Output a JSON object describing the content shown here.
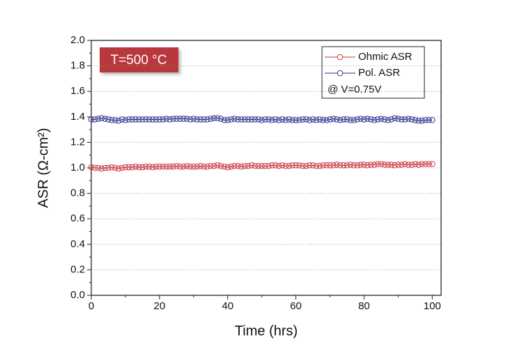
{
  "chart_data": {
    "type": "line",
    "xlabel": "Time (hrs)",
    "ylabel": "ASR (Ω-cm²)",
    "annotation": "T=500 °C",
    "legend_note": "@ V=0.75V",
    "legend": "upper right",
    "grid": true,
    "xlim": [
      0,
      102.6
    ],
    "xticks": [
      0,
      20,
      40,
      60,
      80,
      100
    ],
    "ylim": [
      0,
      2
    ],
    "yticks": [
      {
        "value": 0,
        "label": "0.0"
      },
      0.2,
      0.4,
      0.6,
      0.8,
      {
        "value": 1,
        "label": "1.0"
      },
      1.2,
      1.4,
      1.6,
      1.8,
      {
        "value": 2,
        "label": "2.0"
      }
    ],
    "x": [
      0,
      1,
      2,
      3,
      4,
      5,
      6,
      7,
      8,
      9,
      10,
      11,
      12,
      13,
      14,
      15,
      16,
      17,
      18,
      19,
      20,
      21,
      22,
      23,
      24,
      25,
      26,
      27,
      28,
      29,
      30,
      31,
      32,
      33,
      34,
      35,
      36,
      37,
      38,
      39,
      40,
      41,
      42,
      43,
      44,
      45,
      46,
      47,
      48,
      49,
      50,
      51,
      52,
      53,
      54,
      55,
      56,
      57,
      58,
      59,
      60,
      61,
      62,
      63,
      64,
      65,
      66,
      67,
      68,
      69,
      70,
      71,
      72,
      73,
      74,
      75,
      76,
      77,
      78,
      79,
      80,
      81,
      82,
      83,
      84,
      85,
      86,
      87,
      88,
      89,
      90,
      91,
      92,
      93,
      94,
      95,
      96,
      97,
      98,
      99,
      100
    ],
    "series": [
      {
        "name": "Ohmic ASR",
        "color": "#c8323c",
        "values": [
          1.005,
          1.0,
          1.0,
          0.995,
          1.0,
          1.0,
          1.005,
          1.0,
          0.995,
          1.0,
          1.005,
          1.005,
          1.005,
          1.01,
          1.005,
          1.005,
          1.01,
          1.01,
          1.005,
          1.01,
          1.01,
          1.01,
          1.01,
          1.01,
          1.01,
          1.015,
          1.01,
          1.01,
          1.015,
          1.01,
          1.01,
          1.01,
          1.015,
          1.01,
          1.01,
          1.015,
          1.015,
          1.02,
          1.015,
          1.01,
          1.005,
          1.01,
          1.015,
          1.015,
          1.01,
          1.015,
          1.015,
          1.02,
          1.015,
          1.015,
          1.015,
          1.015,
          1.015,
          1.02,
          1.02,
          1.015,
          1.02,
          1.015,
          1.015,
          1.02,
          1.02,
          1.02,
          1.015,
          1.015,
          1.02,
          1.02,
          1.015,
          1.015,
          1.02,
          1.02,
          1.02,
          1.02,
          1.025,
          1.02,
          1.02,
          1.02,
          1.025,
          1.02,
          1.02,
          1.025,
          1.025,
          1.02,
          1.025,
          1.025,
          1.03,
          1.03,
          1.025,
          1.025,
          1.025,
          1.02,
          1.025,
          1.025,
          1.03,
          1.025,
          1.025,
          1.03,
          1.025,
          1.03,
          1.03,
          1.03,
          1.03
        ]
      },
      {
        "name": "Pol. ASR",
        "color": "#2e2e8c",
        "values": [
          1.38,
          1.38,
          1.385,
          1.39,
          1.385,
          1.38,
          1.375,
          1.375,
          1.37,
          1.38,
          1.375,
          1.38,
          1.38,
          1.38,
          1.38,
          1.38,
          1.38,
          1.38,
          1.38,
          1.38,
          1.38,
          1.38,
          1.385,
          1.38,
          1.385,
          1.385,
          1.385,
          1.385,
          1.385,
          1.38,
          1.385,
          1.38,
          1.38,
          1.38,
          1.38,
          1.385,
          1.39,
          1.39,
          1.385,
          1.375,
          1.375,
          1.38,
          1.385,
          1.38,
          1.38,
          1.38,
          1.38,
          1.38,
          1.38,
          1.38,
          1.375,
          1.38,
          1.38,
          1.375,
          1.38,
          1.375,
          1.38,
          1.375,
          1.38,
          1.375,
          1.375,
          1.375,
          1.38,
          1.38,
          1.375,
          1.38,
          1.375,
          1.38,
          1.375,
          1.375,
          1.38,
          1.385,
          1.38,
          1.375,
          1.38,
          1.38,
          1.375,
          1.375,
          1.38,
          1.385,
          1.38,
          1.385,
          1.38,
          1.375,
          1.38,
          1.385,
          1.38,
          1.375,
          1.38,
          1.39,
          1.385,
          1.38,
          1.38,
          1.385,
          1.38,
          1.375,
          1.37,
          1.37,
          1.375,
          1.375,
          1.375
        ]
      }
    ]
  }
}
